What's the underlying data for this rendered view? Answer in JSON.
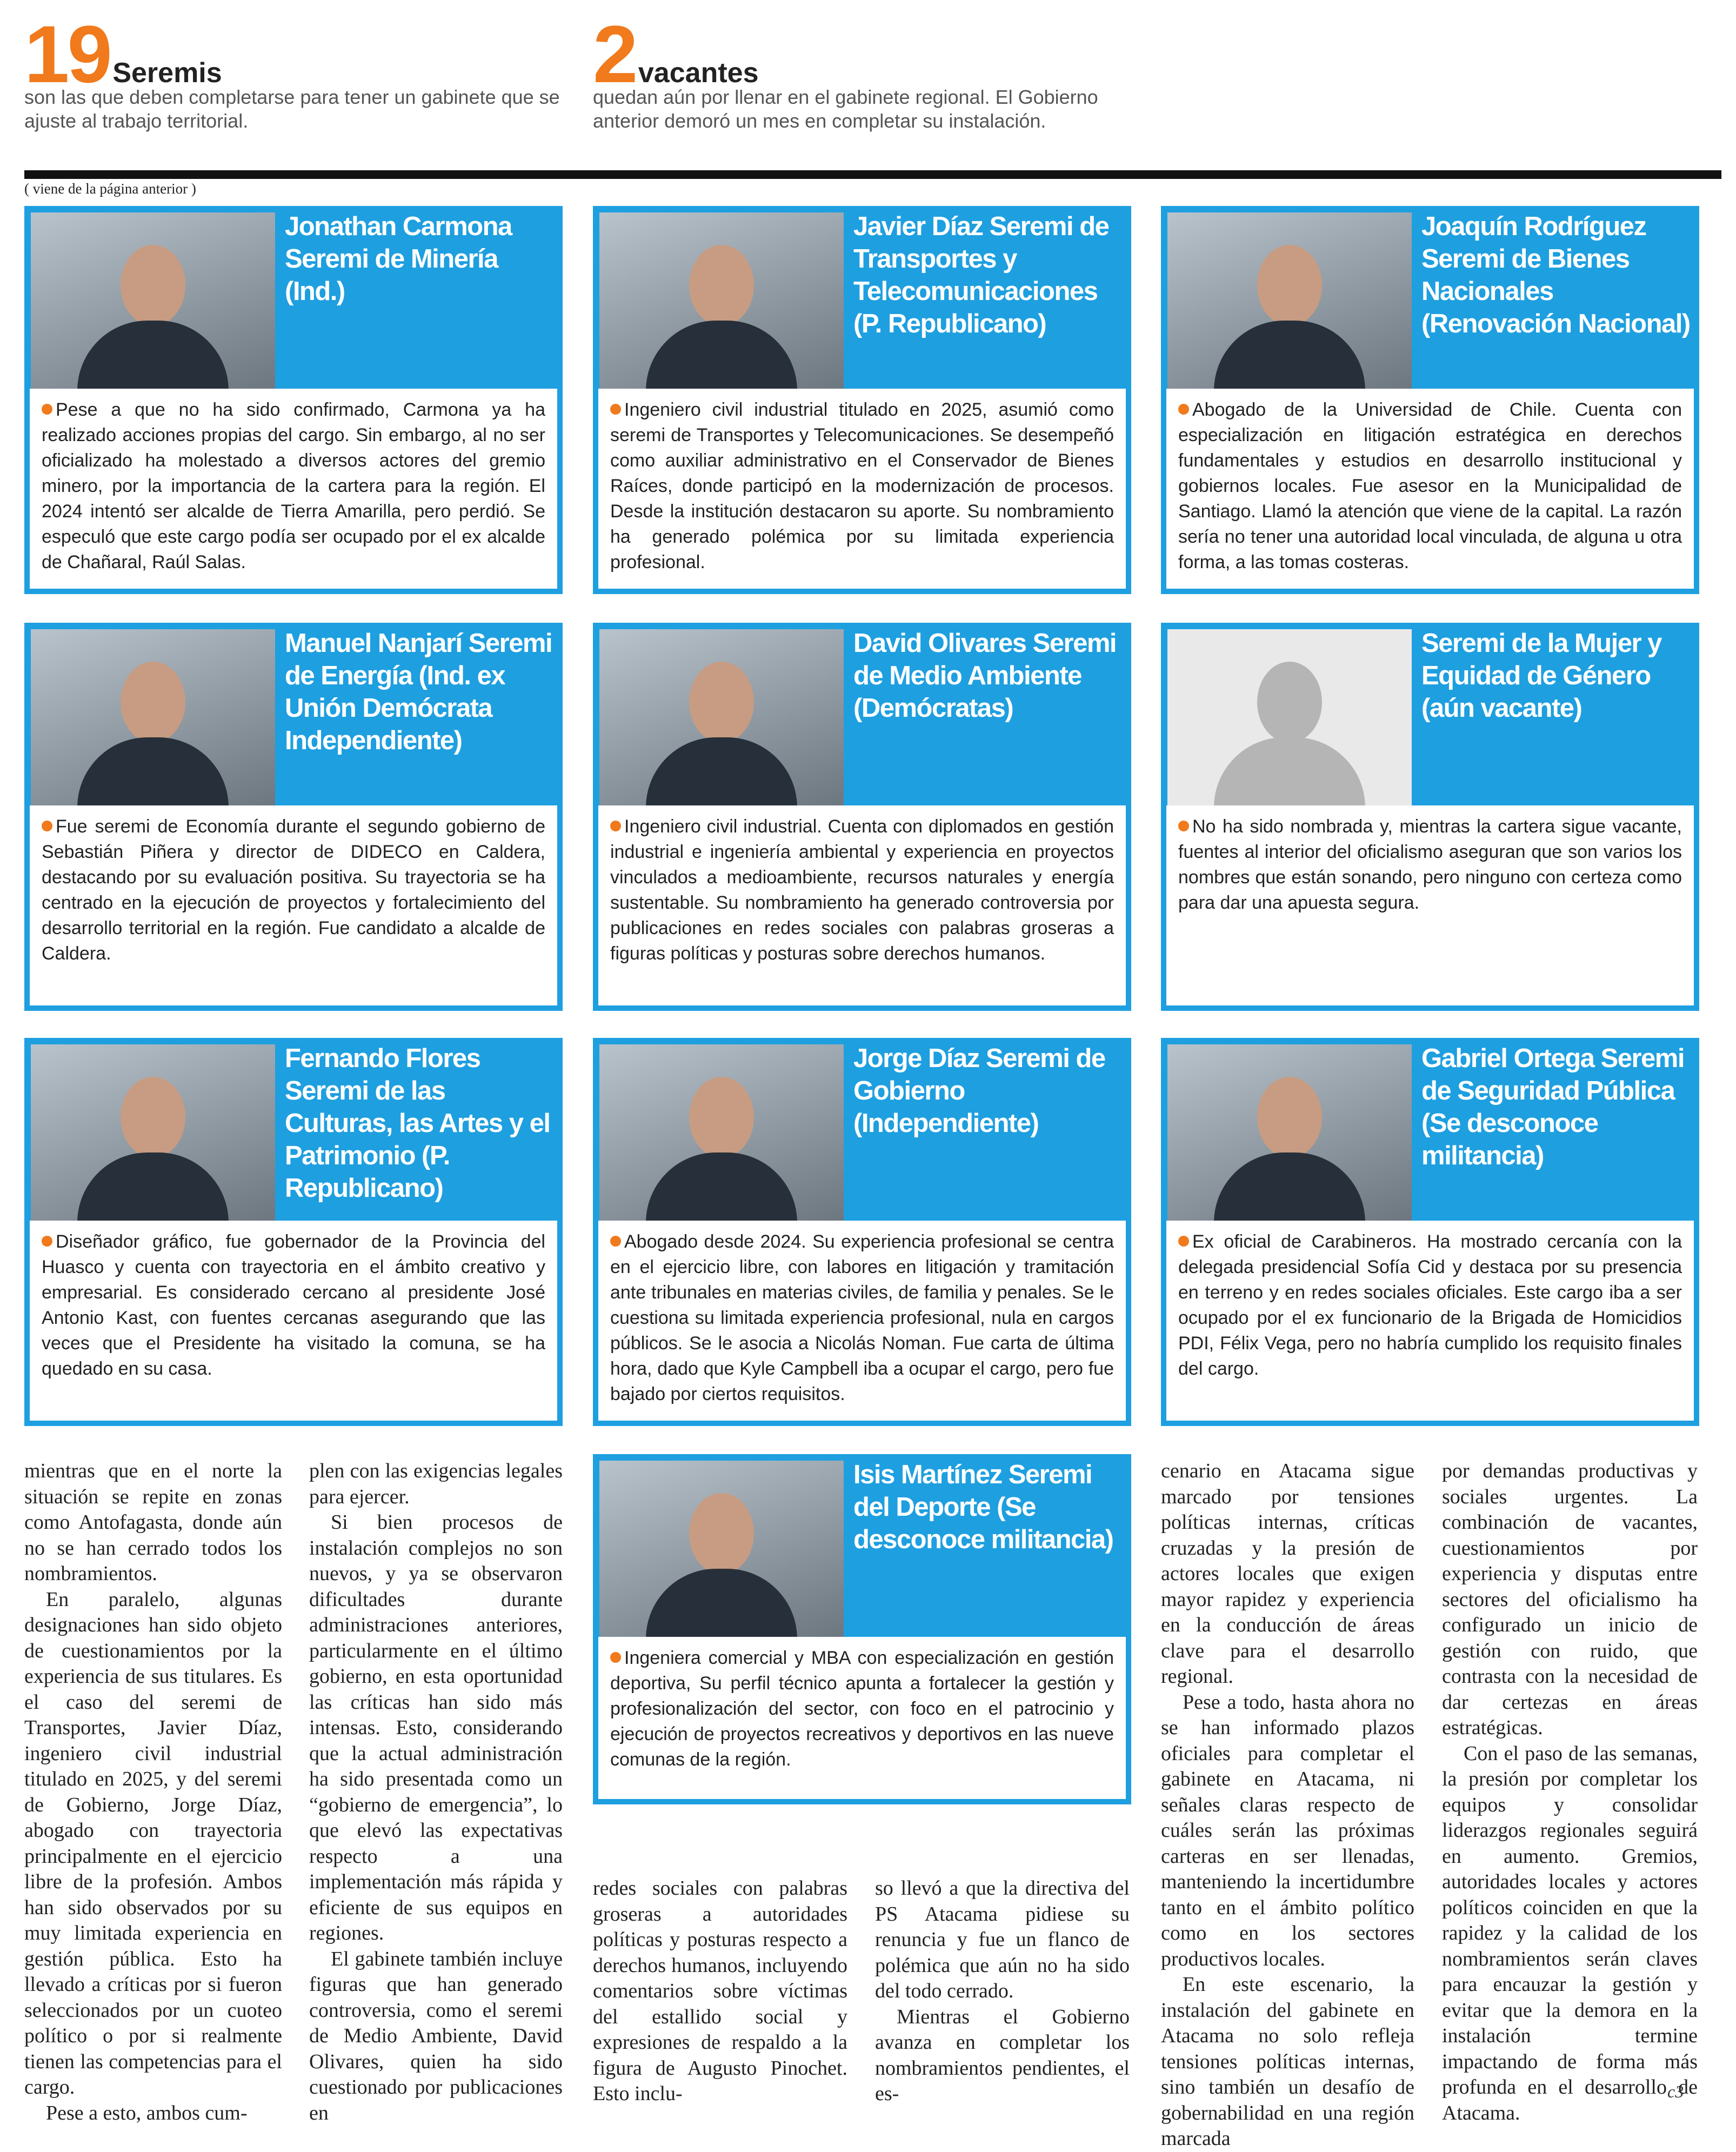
{
  "header": {
    "stats": [
      {
        "number": "19",
        "label": "Seremis",
        "text": "son las que deben completarse para tener un gabinete que se ajuste al trabajo territorial."
      },
      {
        "number": "2",
        "label": "vacantes",
        "text": "quedan aún por llenar en el gabinete regional. El Gobierno anterior demoró un mes en completar su instalación."
      }
    ],
    "continued": "( viene de la página anterior )"
  },
  "cards": [
    {
      "title": "Jonathan Carmona Seremi de Minería (Ind.)",
      "text": "Pese a que no ha sido confirmado, Carmona ya ha realizado acciones propias del cargo. Sin embargo, al no ser oficializado ha molestado a diversos actores del gremio minero, por la importancia de la cartera para la región. El 2024 intentó ser alcalde de Tierra Amarilla, pero perdió. Se especuló que este cargo podía ser ocupado por el ex alcalde de Chañaral, Raúl Salas."
    },
    {
      "title": "Javier Díaz Seremi de Transportes y Telecomunicaciones (P. Republicano)",
      "text": "Ingeniero civil industrial titulado en 2025, asumió como seremi de Transportes y Telecomunicaciones. Se desempeñó como auxiliar administrativo en el Conservador de Bienes Raíces, donde participó en la modernización de procesos. Desde la institución destacaron su aporte. Su nombramiento ha generado polémica por su limitada experiencia profesional."
    },
    {
      "title": "Joaquín Rodríguez Seremi de Bienes Nacionales (Renovación Nacional)",
      "text": "Abogado de la Universidad de Chile. Cuenta con especialización en litigación estratégica en derechos fundamentales y estudios en desarrollo institucional y gobiernos locales. Fue asesor en la Municipalidad de Santiago. Llamó la atención que viene de la capital. La razón sería no tener una autoridad local vinculada, de alguna u otra forma, a las tomas costeras."
    },
    {
      "title": "Manuel Nanjarí Seremi de Energía (Ind. ex Unión Demócrata Independiente)",
      "text": "Fue seremi de Economía durante el segundo gobierno de Sebastián Piñera y director de DIDECO en Caldera, destacando por su evaluación positiva. Su trayectoria se ha centrado en la ejecución de proyectos y fortalecimiento del desarrollo territorial en la región. Fue candidato a alcalde de Caldera."
    },
    {
      "title": "David Olivares Seremi de Medio Ambiente (Demócratas)",
      "text": "Ingeniero civil industrial. Cuenta con diplomados en gestión industrial e ingeniería ambiental y experiencia en proyectos vinculados a medioambiente, recursos naturales y energía sustentable. Su nombramiento ha generado controversia por publicaciones en redes sociales con palabras groseras a figuras políticas y posturas sobre derechos humanos."
    },
    {
      "title": "Seremi de la Mujer y Equidad de Género (aún vacante)",
      "text": "No ha sido nombrada y, mientras la cartera sigue vacante, fuentes al interior del oficialismo aseguran que son varios los nombres que están sonando, pero ninguno con certeza como para dar una apuesta segura."
    },
    {
      "title": "Fernando Flores Seremi de las Culturas, las Artes y el Patrimonio (P. Republicano)",
      "text": "Diseñador gráfico, fue gobernador de la Provincia del Huasco y cuenta con trayectoria en el ámbito creativo y empresarial. Es considerado cercano al presidente José Antonio Kast, con fuentes cercanas asegurando que las veces que el Presidente ha visitado la comuna, se ha quedado en su casa."
    },
    {
      "title": "Jorge Díaz Seremi de Gobierno (Independiente)",
      "text": "Abogado desde 2024. Su experiencia profesional se centra en el ejercicio libre, con labores en litigación y tramitación ante tribunales en materias civiles, de familia y penales. Se le cuestiona su limitada experiencia profesional, nula en cargos públicos. Se le asocia a Nicolás Noman. Fue carta de última hora, dado que Kyle Campbell iba a ocupar el cargo, pero fue bajado por ciertos requisitos."
    },
    {
      "title": "Gabriel Ortega Seremi de Seguridad Pública (Se desconoce militancia)",
      "text": "Ex oficial de Carabineros. Ha mostrado cercanía con la delegada presidencial Sofía Cid y destaca por su presencia en terreno y en redes sociales oficiales. Este cargo iba a ser ocupado por el ex funcionario de la Brigada de Homicidios PDI, Félix Vega, pero no habría cumplido los requisito finales del cargo."
    },
    {
      "title": "Isis Martínez Seremi del Deporte (Se desconoce militancia)",
      "text": "Ingeniera comercial y MBA con especialización en gestión deportiva, Su perfil técnico apunta a fortalecer la gestión y profesionalización del sector, con foco en el patrocinio y ejecución de proyectos recreativos y deportivos en las nueve comunas de la región."
    }
  ],
  "article": {
    "columns": [
      [
        "mientras que en el norte la situación se repite en zonas como Antofagasta, donde aún no se han cerrado todos los nombramientos.",
        "En paralelo, algunas designaciones han sido objeto de cuestionamientos por la experiencia de sus titulares. Es el caso del seremi de Transportes, Javier Díaz, ingeniero civil industrial titulado en 2025, y del seremi de Gobierno, Jorge Díaz, abogado con trayectoria principalmente en el ejercicio libre de la profesión. Ambos han sido observados por su muy limitada experiencia en gestión pública. Esto ha llevado a críticas por si fueron seleccionados por un cuoteo político o por si realmente tienen las competencias para el cargo.",
        "Pese a esto, ambos cum-"
      ],
      [
        "plen con las exigencias legales para ejercer.",
        "Si bien procesos de instalación complejos no son nuevos, y ya se observaron dificultades durante administraciones anteriores, particularmente en el último gobierno, en esta oportunidad las críticas han sido más intensas. Esto, considerando que la actual administración ha sido presentada como un “gobierno de emergencia”, lo que elevó las expectativas respecto a una implementación más rápida y eficiente de sus equipos en regiones.",
        "El gabinete también incluye figuras que han generado controversia, como el seremi de Medio Ambiente, David Olivares, quien ha sido cuestionado por publicaciones en"
      ],
      [
        "redes sociales con palabras groseras a autoridades políticas y posturas respecto a derechos humanos, incluyendo comentarios sobre víctimas del estallido social y expresiones de respaldo a la figura de Augusto Pinochet. Esto inclu-"
      ],
      [
        "so llevó a que la directiva del PS Atacama pidiese su renuncia y fue un flanco de polémica que aún no ha sido del todo cerrado.",
        "Mientras el Gobierno avanza en completar los nombramientos pendientes, el es-"
      ],
      [
        "cenario en Atacama sigue marcado por tensiones políticas internas, críticas cruzadas y la presión de actores locales que exigen mayor rapidez y experiencia en la conducción de áreas clave para el desarrollo regional.",
        "Pese a todo, hasta ahora no se han informado plazos oficiales para completar el gabinete en Atacama, ni señales claras respecto de cuáles serán las próximas carteras en ser llenadas, manteniendo la incertidumbre tanto en el ámbito político como en los sectores productivos locales.",
        "En este escenario, la instalación del gabinete en Atacama no solo refleja tensiones políticas internas, sino también un desafío de gobernabilidad en una región marcada"
      ],
      [
        "por demandas productivas y sociales urgentes. La combinación de vacantes, cuestionamientos por experiencia y disputas entre sectores del oficialismo ha configurado un inicio de gestión con ruido, que contrasta con la necesidad de dar certezas en áreas estratégicas.",
        "Con el paso de las semanas, la presión por completar los equipos y consolidar liderazgos regionales seguirá en aumento. Gremios, autoridades locales y actores políticos coinciden en que la rapidez y la calidad de los nombramientos serán claves para encauzar la gestión y evitar que la demora en la instalación termine impactando de forma más profunda en el desarrollo de Atacama."
      ]
    ]
  }
}
